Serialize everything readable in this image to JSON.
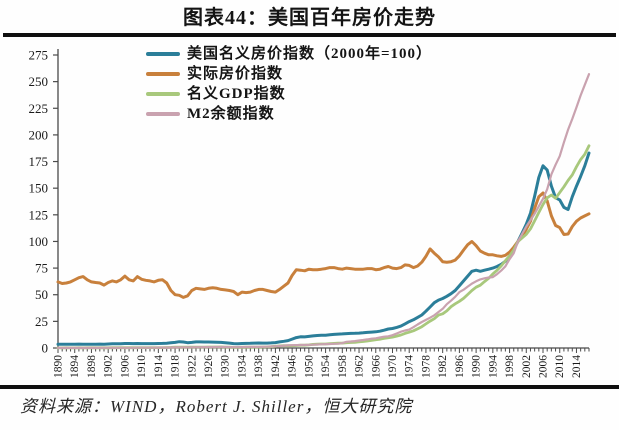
{
  "page": {
    "title": "图表44：美国百年房价走势",
    "source": "资料来源：WIND，Robert J. Shiller，恒大研究院"
  },
  "chart_data": {
    "type": "line",
    "title": "图表44：美国百年房价走势",
    "x_start": 1890,
    "x_end": 2017,
    "x_tick_labels": [
      "1890",
      "1894",
      "1898",
      "1902",
      "1906",
      "1910",
      "1914",
      "1918",
      "1922",
      "1926",
      "1930",
      "1934",
      "1938",
      "1942",
      "1946",
      "1950",
      "1954",
      "1958",
      "1962",
      "1966",
      "1970",
      "1974",
      "1978",
      "1982",
      "1986",
      "1990",
      "1994",
      "1998",
      "2002",
      "2006",
      "2010",
      "2014"
    ],
    "ylim": [
      0,
      275
    ],
    "y_ticks": [
      0,
      25,
      50,
      75,
      100,
      125,
      150,
      175,
      200,
      225,
      250,
      275
    ],
    "grid": false,
    "legend_position": "top-center-inside",
    "axis_colors": {
      "axis": "#4a4a4a",
      "tick_label": "#1a1a1a"
    },
    "series": [
      {
        "id": "nominal-home-price-index",
        "name": "美国名义房价指数（2000年=100）",
        "color": "#2B7E99",
        "width": 3,
        "values": [
          3.6,
          3.5,
          3.6,
          3.6,
          3.6,
          3.7,
          3.6,
          3.6,
          3.6,
          3.6,
          3.7,
          3.6,
          3.8,
          3.9,
          3.9,
          4.0,
          4.2,
          4.2,
          4.1,
          4.2,
          4.1,
          4.1,
          4.1,
          4.1,
          4.2,
          4.3,
          4.5,
          4.9,
          5.3,
          5.9,
          5.6,
          5.0,
          5.3,
          5.7,
          5.7,
          5.6,
          5.6,
          5.5,
          5.4,
          5.3,
          5.0,
          4.6,
          4.1,
          3.9,
          4.2,
          4.3,
          4.4,
          4.6,
          4.7,
          4.6,
          4.6,
          4.8,
          5.1,
          5.7,
          6.3,
          6.9,
          8.4,
          9.8,
          10.5,
          10.4,
          10.9,
          11.4,
          11.7,
          11.9,
          12.0,
          12.4,
          12.8,
          13.0,
          13.2,
          13.5,
          13.7,
          13.8,
          14.0,
          14.3,
          14.6,
          14.9,
          15.2,
          15.8,
          16.7,
          17.8,
          18.3,
          19.3,
          20.6,
          22.6,
          24.8,
          26.5,
          28.7,
          31.0,
          34.5,
          38.5,
          42.5,
          45.0,
          46.5,
          48.5,
          51.0,
          54.0,
          58.5,
          63.0,
          67.5,
          72.0,
          73.0,
          72.0,
          73.0,
          74.0,
          75.0,
          76.5,
          78.5,
          81.5,
          86.0,
          92.5,
          100,
          107.9,
          116.2,
          126.6,
          142.3,
          160.0,
          171.0,
          167.0,
          152.0,
          141.0,
          139.0,
          132.0,
          130.0,
          142.0,
          152.0,
          161.0,
          171.0,
          183.0
        ]
      },
      {
        "id": "real-home-price-index",
        "name": "实际房价指数",
        "color": "#C8803C",
        "width": 3,
        "values": [
          62,
          60.5,
          61,
          62,
          64,
          66,
          67,
          64,
          62,
          61.5,
          61,
          59,
          61.5,
          63,
          62,
          64,
          67.5,
          64,
          63,
          67,
          64.5,
          63.5,
          63,
          62,
          63.5,
          64,
          61,
          54,
          50,
          49.5,
          47.5,
          49,
          54,
          56,
          55.5,
          55,
          56,
          56.5,
          56,
          55,
          54.5,
          54,
          53,
          50,
          52.5,
          52,
          52.5,
          54,
          55,
          55,
          54,
          53,
          52.5,
          55,
          58,
          61,
          68,
          73.5,
          73,
          72.5,
          74,
          73.5,
          73.5,
          74,
          74.5,
          75.5,
          75.5,
          74.5,
          74,
          75,
          74.5,
          74,
          74,
          74,
          74.5,
          74.5,
          73.5,
          74,
          75.5,
          76.5,
          75,
          74.5,
          75.5,
          78,
          77.5,
          75.5,
          77,
          80.5,
          86,
          93,
          89,
          85.5,
          81,
          80.5,
          81,
          82.5,
          86.5,
          92,
          97,
          100,
          96,
          91,
          89,
          87.5,
          87.5,
          86.5,
          86,
          87,
          90,
          94.5,
          100,
          105,
          111.5,
          119,
          131,
          142,
          145.5,
          138,
          124,
          115,
          113,
          106.5,
          107,
          114,
          119,
          122,
          124,
          126
        ]
      },
      {
        "id": "nominal-gdp-index",
        "name": "名义GDP指数",
        "color": "#A8C87C",
        "width": 2.8,
        "values": [
          0.13,
          0.14,
          0.15,
          0.14,
          0.13,
          0.15,
          0.14,
          0.15,
          0.17,
          0.18,
          0.2,
          0.22,
          0.23,
          0.24,
          0.24,
          0.26,
          0.29,
          0.3,
          0.27,
          0.32,
          0.33,
          0.34,
          0.37,
          0.38,
          0.37,
          0.39,
          0.48,
          0.58,
          0.74,
          0.76,
          0.86,
          0.72,
          0.72,
          0.83,
          0.85,
          0.88,
          0.94,
          0.93,
          0.95,
          1.01,
          0.89,
          0.75,
          0.57,
          0.55,
          0.64,
          0.71,
          0.81,
          0.89,
          0.83,
          0.9,
          0.99,
          1.24,
          1.58,
          1.96,
          2.13,
          2.21,
          2.17,
          2.38,
          2.64,
          2.62,
          2.91,
          3.35,
          3.54,
          3.74,
          3.76,
          4.09,
          4.32,
          4.55,
          4.61,
          5.01,
          5.2,
          5.38,
          5.78,
          6.1,
          6.55,
          7.1,
          7.78,
          8.22,
          8.99,
          9.71,
          10.25,
          11.13,
          12.23,
          13.66,
          14.8,
          16.14,
          17.99,
          20.01,
          22.61,
          25.25,
          27.49,
          30.84,
          32.08,
          34.85,
          38.73,
          41.52,
          43.86,
          46.64,
          50.25,
          54.0,
          57.11,
          58.95,
          62.28,
          65.45,
          69.54,
          72.91,
          77.05,
          81.92,
          86.55,
          91.93,
          100,
          103.3,
          106.7,
          111.9,
          119.3,
          127.2,
          134.7,
          141.0,
          143.6,
          140.5,
          145.9,
          151.3,
          157.3,
          162.5,
          170.2,
          176.8,
          181.8,
          189.9
        ]
      },
      {
        "id": "m2-balance-index",
        "name": "M2余额指数",
        "color": "#C9A2AF",
        "width": 2.2,
        "values": [
          0.08,
          0.09,
          0.09,
          0.09,
          0.09,
          0.1,
          0.1,
          0.11,
          0.12,
          0.13,
          0.14,
          0.16,
          0.17,
          0.18,
          0.19,
          0.21,
          0.22,
          0.23,
          0.23,
          0.25,
          0.27,
          0.28,
          0.3,
          0.31,
          0.33,
          0.36,
          0.42,
          0.49,
          0.55,
          0.63,
          0.7,
          0.66,
          0.7,
          0.75,
          0.78,
          0.83,
          0.86,
          0.89,
          0.93,
          0.95,
          0.92,
          0.85,
          0.78,
          0.75,
          0.82,
          0.92,
          1.0,
          1.02,
          1.04,
          1.14,
          1.26,
          1.4,
          1.58,
          1.86,
          2.14,
          2.46,
          2.66,
          2.76,
          2.8,
          2.82,
          2.96,
          3.1,
          3.28,
          3.44,
          3.62,
          3.8,
          3.94,
          4.08,
          4.6,
          5.8,
          6.1,
          6.5,
          7.0,
          7.5,
          8.1,
          8.7,
          9.1,
          9.9,
          10.6,
          11.0,
          12.0,
          13.6,
          15.3,
          16.4,
          17.3,
          19.5,
          22.1,
          24.4,
          26.4,
          28.4,
          30.7,
          33.8,
          36.8,
          41.1,
          44.4,
          48.1,
          52.5,
          54.7,
          57.6,
          60.4,
          62.6,
          64.4,
          65.4,
          66.2,
          66.5,
          69.3,
          72.6,
          76.7,
          83.4,
          88.9,
          100,
          107,
          114,
          120,
          126,
          133,
          140,
          149,
          163,
          172,
          180,
          193,
          205,
          215,
          226,
          237,
          247,
          257
        ]
      }
    ]
  }
}
